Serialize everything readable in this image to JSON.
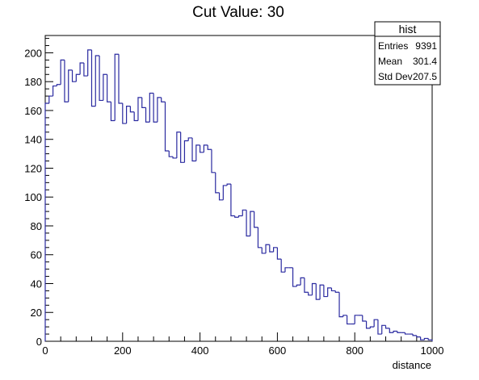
{
  "chart_data": {
    "type": "histogram",
    "title": "Cut Value: 30",
    "xlabel": "distance",
    "ylabel": "",
    "xlim": [
      0,
      1000
    ],
    "ylim": [
      0,
      212
    ],
    "bin_width": 10,
    "x_ticks": [
      0,
      200,
      400,
      600,
      800,
      1000
    ],
    "y_ticks": [
      0,
      20,
      40,
      60,
      80,
      100,
      120,
      140,
      160,
      180,
      200
    ],
    "line_color": "#2a2aa0",
    "grid": false,
    "legend": "none",
    "values": [
      165,
      170,
      177,
      178,
      195,
      166,
      188,
      180,
      185,
      193,
      184,
      202,
      163,
      198,
      167,
      185,
      166,
      153,
      199,
      165,
      151,
      163,
      159,
      153,
      169,
      162,
      152,
      172,
      152,
      169,
      166,
      132,
      128,
      127,
      145,
      124,
      139,
      141,
      125,
      136,
      131,
      136,
      133,
      117,
      103,
      98,
      108,
      109,
      87,
      86,
      87,
      91,
      73,
      90,
      79,
      65,
      61,
      67,
      62,
      65,
      57,
      48,
      51,
      51,
      38,
      39,
      44,
      34,
      32,
      40,
      29,
      39,
      31,
      37,
      35,
      34,
      17,
      18,
      12,
      12,
      18,
      18,
      14,
      9,
      10,
      15,
      5,
      11,
      9,
      6,
      7,
      6,
      6,
      5,
      5,
      4,
      3,
      1,
      2,
      1
    ]
  },
  "stats_box": {
    "title": "hist",
    "rows": [
      {
        "label": "Entries",
        "value": "9391"
      },
      {
        "label": "Mean",
        "value": "301.4"
      },
      {
        "label": "Std Dev",
        "value": "207.5"
      }
    ]
  }
}
